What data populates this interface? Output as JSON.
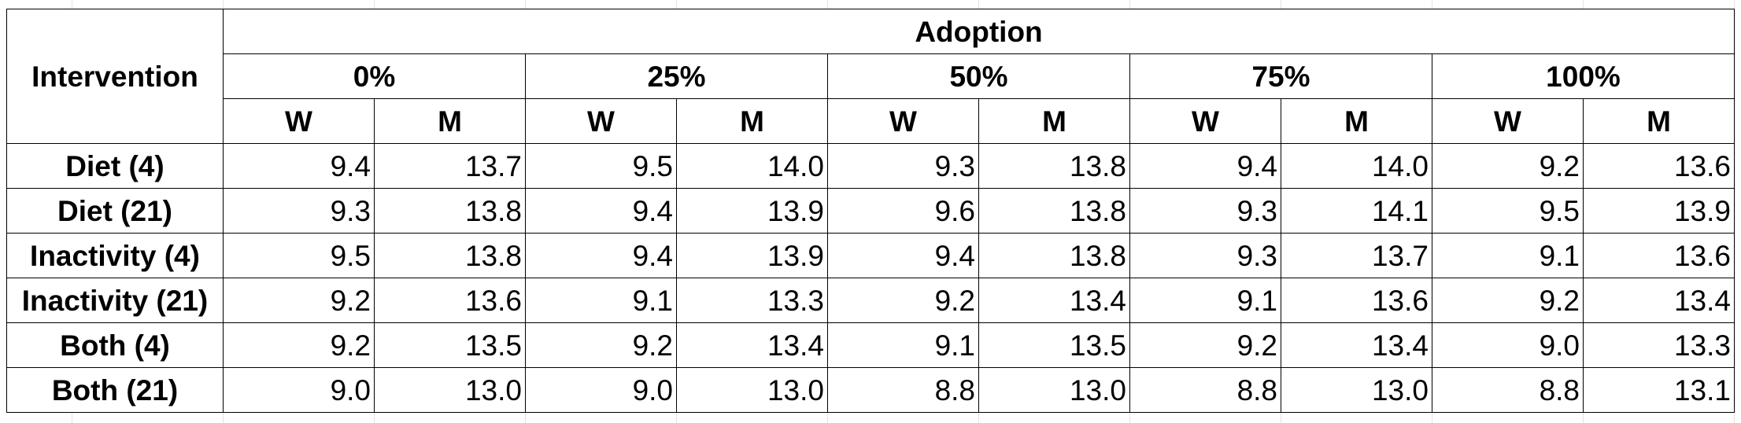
{
  "header": {
    "intervention_label": "Intervention",
    "adoption_label": "Adoption",
    "adoption_levels": [
      "0%",
      "25%",
      "50%",
      "75%",
      "100%"
    ],
    "sub_labels": [
      "W",
      "M"
    ]
  },
  "rows": [
    {
      "label": "Diet (4)",
      "values": [
        "9.4",
        "13.7",
        "9.5",
        "14.0",
        "9.3",
        "13.8",
        "9.4",
        "14.0",
        "9.2",
        "13.6"
      ]
    },
    {
      "label": "Diet (21)",
      "values": [
        "9.3",
        "13.8",
        "9.4",
        "13.9",
        "9.6",
        "13.8",
        "9.3",
        "14.1",
        "9.5",
        "13.9"
      ]
    },
    {
      "label": "Inactivity (4)",
      "values": [
        "9.5",
        "13.8",
        "9.4",
        "13.9",
        "9.4",
        "13.8",
        "9.3",
        "13.7",
        "9.1",
        "13.6"
      ]
    },
    {
      "label": "Inactivity (21)",
      "values": [
        "9.2",
        "13.6",
        "9.1",
        "13.3",
        "9.2",
        "13.4",
        "9.1",
        "13.6",
        "9.2",
        "13.4"
      ]
    },
    {
      "label": "Both (4)",
      "values": [
        "9.2",
        "13.5",
        "9.2",
        "13.4",
        "9.1",
        "13.5",
        "9.2",
        "13.4",
        "9.0",
        "13.3"
      ]
    },
    {
      "label": "Both (21)",
      "values": [
        "9.0",
        "13.0",
        "9.0",
        "13.0",
        "8.8",
        "13.0",
        "8.8",
        "13.0",
        "8.8",
        "13.1"
      ]
    }
  ]
}
